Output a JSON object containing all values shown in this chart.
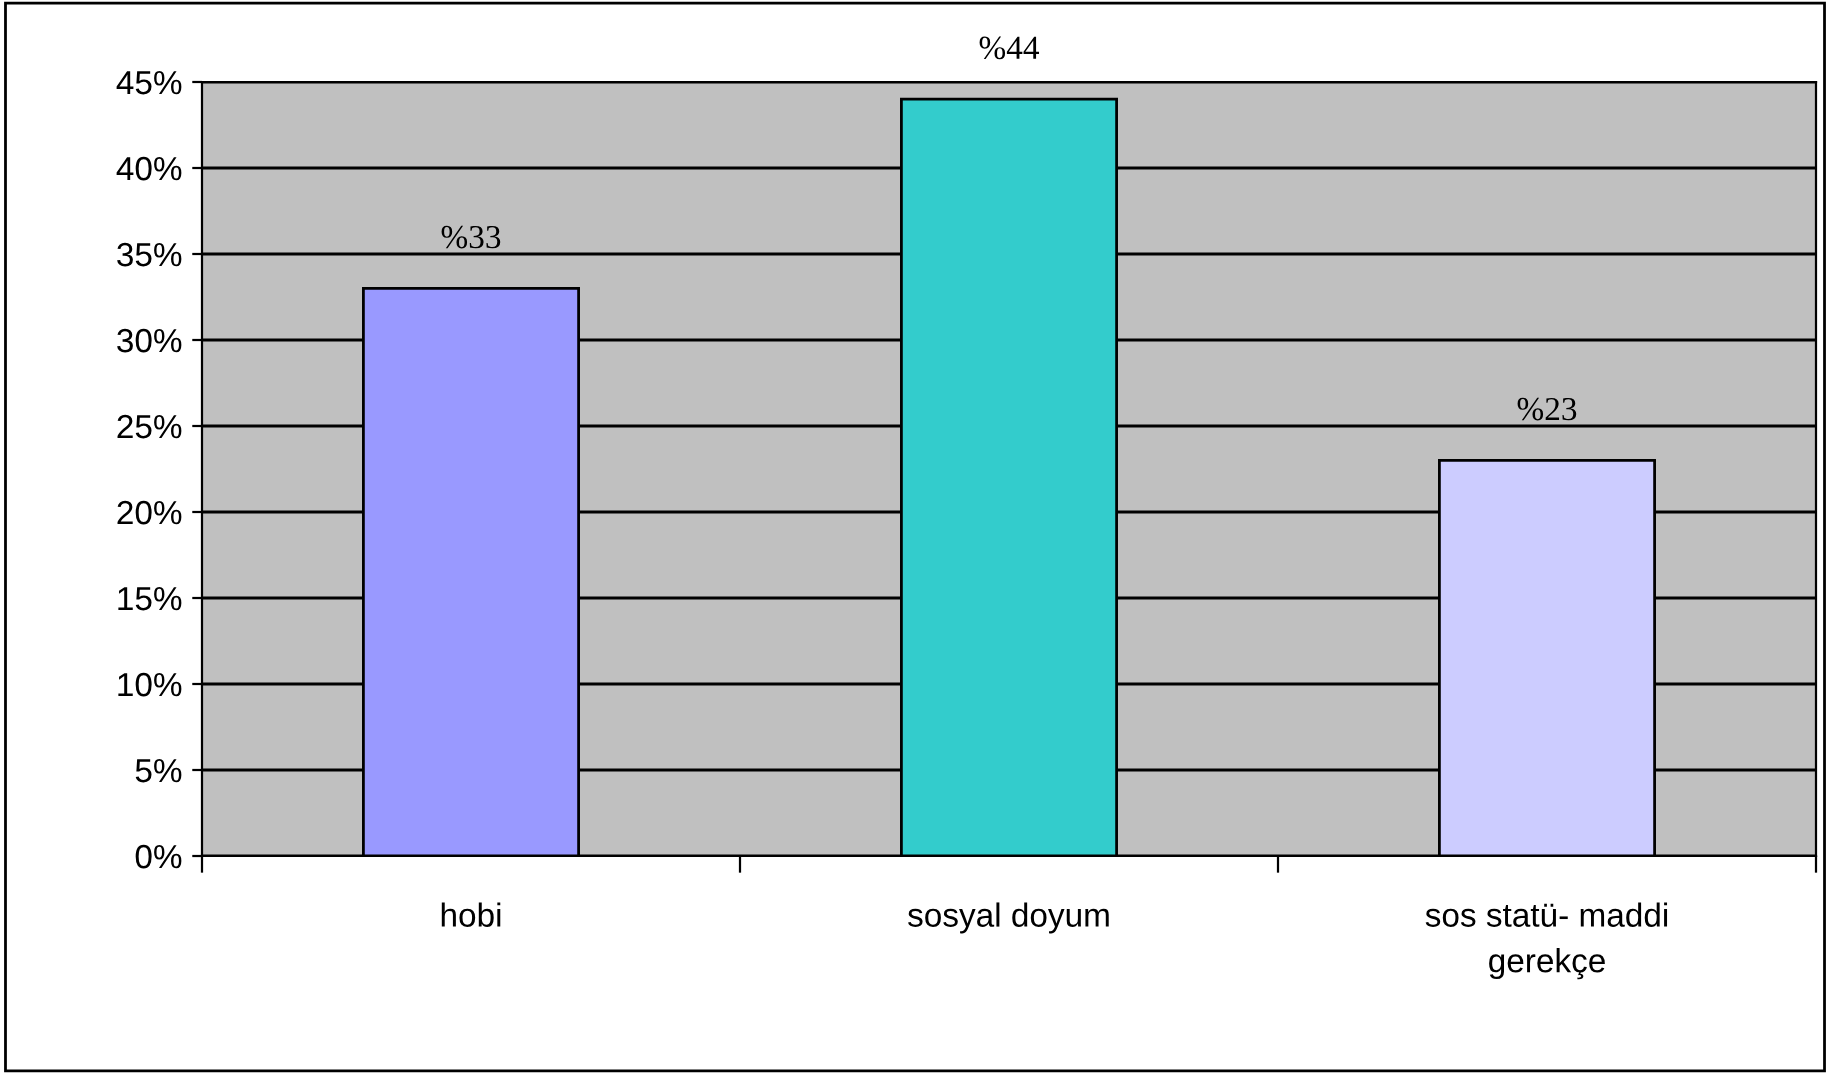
{
  "chart_data": {
    "type": "bar",
    "categories": [
      "hobi",
      "sosyal doyum",
      "sos statü- maddi gerekçe"
    ],
    "values": [
      33,
      44,
      23
    ],
    "value_labels": [
      "%33",
      "%44",
      "%23"
    ],
    "colors": [
      "#9999ff",
      "#33cccc",
      "#ccccff"
    ],
    "ylim": [
      0,
      45
    ],
    "yticks": [
      {
        "value": 0,
        "label": "0%"
      },
      {
        "value": 5,
        "label": "5%"
      },
      {
        "value": 10,
        "label": "10%"
      },
      {
        "value": 15,
        "label": "15%"
      },
      {
        "value": 20,
        "label": "20%"
      },
      {
        "value": 25,
        "label": "25%"
      },
      {
        "value": 30,
        "label": "30%"
      },
      {
        "value": 35,
        "label": "35%"
      },
      {
        "value": 40,
        "label": "40%"
      },
      {
        "value": 45,
        "label": "45%"
      }
    ],
    "grid": "y",
    "legend": false
  }
}
